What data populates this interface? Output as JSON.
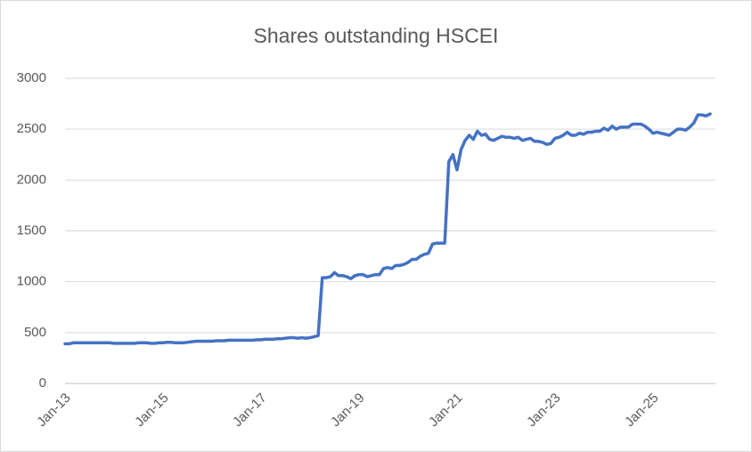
{
  "chart_data": {
    "type": "line",
    "title": "Shares outstanding HSCEI",
    "categories": [
      "Jan-13",
      null,
      null,
      null,
      null,
      null,
      null,
      null,
      null,
      null,
      null,
      null,
      null,
      null,
      null,
      null,
      null,
      null,
      null,
      null,
      null,
      null,
      null,
      null,
      "Jan-15",
      null,
      null,
      null,
      null,
      null,
      null,
      null,
      null,
      null,
      null,
      null,
      null,
      null,
      null,
      null,
      null,
      null,
      null,
      null,
      null,
      null,
      null,
      null,
      "Jan-17",
      null,
      null,
      null,
      null,
      null,
      null,
      null,
      null,
      null,
      null,
      null,
      null,
      null,
      null,
      null,
      null,
      null,
      null,
      null,
      null,
      null,
      null,
      null,
      "Jan-19",
      null,
      null,
      null,
      null,
      null,
      null,
      null,
      null,
      null,
      null,
      null,
      null,
      null,
      null,
      null,
      null,
      null,
      null,
      null,
      null,
      null,
      null,
      null,
      "Jan-21",
      null,
      null,
      null,
      null,
      null,
      null,
      null,
      null,
      null,
      null,
      null,
      null,
      null,
      null,
      null,
      null,
      null,
      null,
      null,
      null,
      null,
      null,
      null,
      "Jan-23",
      null,
      null,
      null,
      null,
      null,
      null,
      null,
      null,
      null,
      null,
      null,
      null,
      null,
      null,
      null,
      null,
      null,
      null,
      null,
      null,
      null,
      null,
      null,
      "Jan-25",
      null,
      null,
      null,
      null,
      null,
      null,
      null,
      null,
      null,
      null,
      null,
      null,
      null,
      null
    ],
    "series": [
      {
        "name": "Shares outstanding HSCEI",
        "color": "#4472c4",
        "values": [
          390,
          390,
          400,
          400,
          400,
          400,
          400,
          400,
          400,
          400,
          400,
          400,
          395,
          395,
          395,
          395,
          395,
          395,
          400,
          400,
          400,
          395,
          395,
          400,
          400,
          405,
          405,
          400,
          400,
          400,
          405,
          410,
          415,
          415,
          415,
          415,
          415,
          420,
          420,
          420,
          425,
          425,
          425,
          425,
          425,
          425,
          425,
          430,
          430,
          435,
          435,
          435,
          440,
          440,
          445,
          450,
          450,
          445,
          450,
          445,
          450,
          460,
          470,
          1040,
          1040,
          1050,
          1090,
          1060,
          1060,
          1050,
          1030,
          1060,
          1070,
          1070,
          1050,
          1060,
          1070,
          1070,
          1130,
          1140,
          1130,
          1160,
          1160,
          1170,
          1190,
          1220,
          1220,
          1250,
          1270,
          1280,
          1370,
          1380,
          1380,
          1380,
          2180,
          2250,
          2100,
          2300,
          2390,
          2440,
          2400,
          2480,
          2440,
          2450,
          2400,
          2390,
          2410,
          2430,
          2420,
          2420,
          2410,
          2420,
          2390,
          2400,
          2410,
          2380,
          2380,
          2370,
          2350,
          2360,
          2410,
          2420,
          2440,
          2470,
          2440,
          2440,
          2460,
          2450,
          2470,
          2470,
          2480,
          2480,
          2510,
          2490,
          2530,
          2500,
          2520,
          2520,
          2520,
          2550,
          2550,
          2550,
          2530,
          2500,
          2460,
          2470,
          2460,
          2450,
          2440,
          2470,
          2500,
          2500,
          2490,
          2520,
          2560,
          2640,
          2640,
          2630,
          2650
        ]
      }
    ],
    "ylim": [
      0,
      3000
    ],
    "yticks": [
      0,
      500,
      1000,
      1500,
      2000,
      2500,
      3000
    ],
    "grid": true,
    "legend": false
  }
}
